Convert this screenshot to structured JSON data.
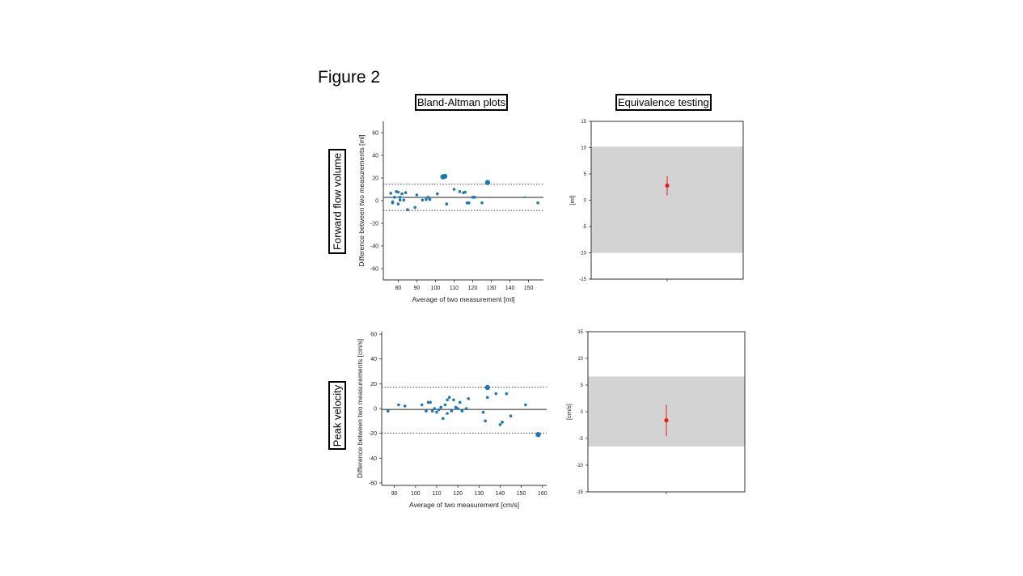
{
  "figure_title": "Figure 2",
  "column_headers": {
    "bland_altman": "Bland-Altman plots",
    "equivalence": "Equivalence testing"
  },
  "row_headers": {
    "forward_flow": "Forward flow volume",
    "peak_velocity": "Peak velocity"
  },
  "chart_data": [
    {
      "type": "scatter",
      "xlabel": "Average of two measurement [ml]",
      "ylabel": "Difference between two measurements [ml]",
      "xlim": [
        72,
        158
      ],
      "ylim": [
        -70,
        70
      ],
      "xticks": [
        80,
        90,
        100,
        110,
        120,
        130,
        140,
        150
      ],
      "yticks": [
        -60,
        -40,
        -20,
        0,
        20,
        40,
        60
      ],
      "mean_line": 2.9,
      "upper_loa": 14.5,
      "lower_loa": -8.7,
      "series": [
        {
          "x": [
            76,
            77,
            77,
            78,
            79,
            80,
            80,
            81,
            81,
            82,
            83,
            84,
            85,
            89,
            90,
            93,
            95,
            96,
            97,
            101,
            104,
            105,
            106,
            106,
            110,
            113,
            115,
            116,
            117,
            118,
            120,
            121,
            125,
            128,
            148,
            155
          ],
          "y": [
            6.5,
            -1,
            -2,
            3,
            8,
            7.5,
            -3,
            3,
            0.5,
            6,
            0.5,
            7,
            -8,
            -6,
            5,
            0.5,
            1,
            3,
            1,
            6,
            21,
            21.5,
            -3,
            -3,
            10,
            8,
            7,
            7.5,
            -2,
            -2,
            3,
            3,
            -2,
            16,
            3,
            -2
          ],
          "size": [
            2,
            2,
            2,
            2,
            2,
            2,
            2,
            2,
            2,
            2,
            2,
            2,
            2,
            2,
            2,
            2,
            2,
            2,
            2,
            2,
            3,
            3,
            2,
            2,
            2,
            2,
            2,
            2,
            2,
            2,
            2,
            2,
            2,
            3,
            1,
            2
          ]
        }
      ]
    },
    {
      "type": "errorbar",
      "ylabel": "[ml]",
      "ylim": [
        -15,
        15
      ],
      "yticks": [
        -15,
        -10,
        -5,
        0,
        5,
        10,
        15
      ],
      "equivalence_band": [
        -10,
        10.2
      ],
      "point": 2.8,
      "ci": [
        0.9,
        4.6
      ]
    },
    {
      "type": "scatter",
      "xlabel": "Average of two measurement [cm/s]",
      "ylabel": "Difference between two measurements [cm/s]",
      "xlim": [
        84,
        162
      ],
      "ylim": [
        -62,
        62
      ],
      "xticks": [
        90,
        100,
        110,
        120,
        130,
        140,
        150,
        160
      ],
      "yticks": [
        -60,
        -40,
        -20,
        0,
        20,
        40,
        60
      ],
      "mean_line": -0.7,
      "upper_loa": 17.2,
      "lower_loa": -19.8,
      "series": [
        {
          "x": [
            87,
            92,
            95,
            103,
            105,
            106,
            107,
            108,
            109,
            110,
            111,
            112,
            113,
            114,
            115,
            115,
            116,
            117,
            118,
            119,
            120,
            121,
            122,
            124,
            125,
            132,
            133,
            134,
            134,
            138,
            140,
            141,
            143,
            145,
            152,
            158
          ],
          "y": [
            -2,
            3,
            2,
            3,
            -2,
            5,
            5,
            -2,
            0,
            -3,
            -1,
            1,
            -8,
            3,
            7,
            -4,
            9,
            -2,
            7,
            1,
            0,
            5,
            -2,
            0,
            8,
            -3,
            -10,
            9,
            17,
            12,
            -13,
            -11,
            12,
            -6,
            3,
            -21
          ],
          "size": [
            2,
            2,
            2,
            2,
            2,
            2,
            2,
            2,
            2,
            2,
            2,
            2,
            2,
            2,
            2,
            2,
            2,
            2,
            2,
            2,
            2,
            2,
            2,
            2,
            2,
            2,
            2,
            2,
            3,
            2,
            2,
            2,
            2,
            2,
            2,
            3
          ]
        }
      ]
    },
    {
      "type": "errorbar",
      "ylabel": "[cm/s]",
      "ylim": [
        -15,
        15
      ],
      "yticks": [
        -15,
        -10,
        -5,
        0,
        5,
        10,
        15
      ],
      "equivalence_band": [
        -6.5,
        6.6
      ],
      "point": -1.6,
      "ci": [
        -4.6,
        1.3
      ]
    }
  ]
}
